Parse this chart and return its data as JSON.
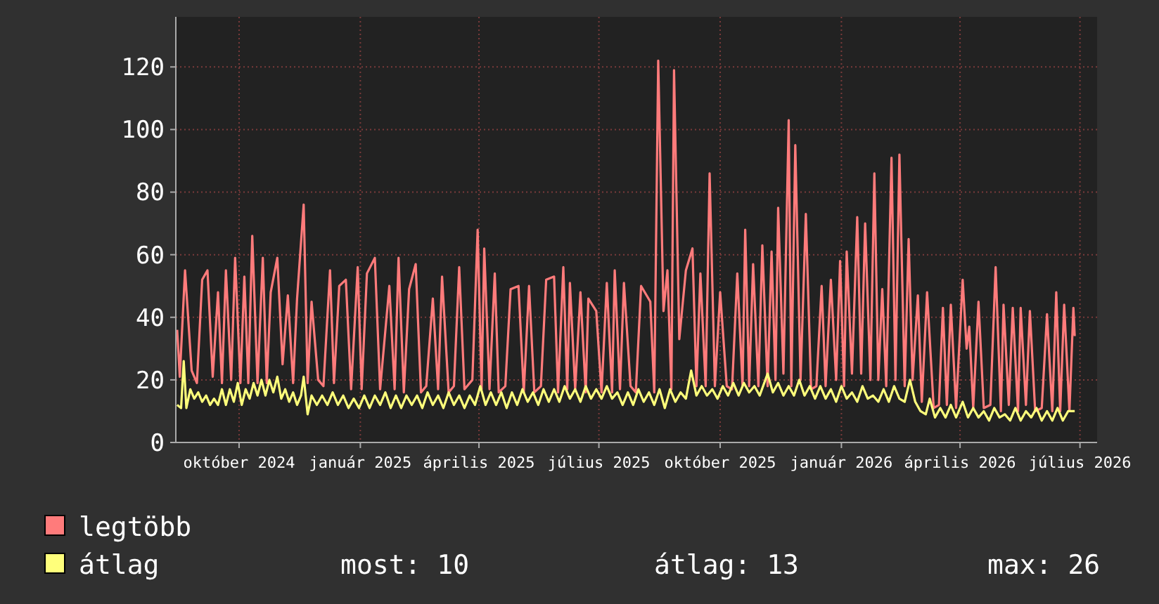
{
  "chart_data": {
    "type": "line",
    "xlim": [
      "2024-08-14",
      "2026-07-14"
    ],
    "xticks": [
      {
        "value": "2024-10-01",
        "label": "október 2024"
      },
      {
        "value": "2025-01-01",
        "label": "január 2025"
      },
      {
        "value": "2025-04-01",
        "label": "április 2025"
      },
      {
        "value": "2025-07-01",
        "label": "július 2025"
      },
      {
        "value": "2025-10-01",
        "label": "október 2025"
      },
      {
        "value": "2026-01-01",
        "label": "január 2026"
      },
      {
        "value": "2026-04-01",
        "label": "április 2026"
      },
      {
        "value": "2026-07-01",
        "label": "július 2026"
      }
    ],
    "ylim": [
      0,
      136
    ],
    "yticks": [
      0,
      20,
      40,
      60,
      80,
      100,
      120
    ],
    "grid": true,
    "legend": "bottom",
    "annotations": [
      "most: 10",
      "átlag: 13",
      "max: 26"
    ],
    "series": [
      {
        "name": "legtöbb",
        "color": "#ff7b7b",
        "x": [
          "2024-08-15",
          "2024-08-17",
          "2024-08-21",
          "2024-08-26",
          "2024-08-30",
          "2024-09-03",
          "2024-09-07",
          "2024-09-11",
          "2024-09-15",
          "2024-09-18",
          "2024-09-21",
          "2024-09-25",
          "2024-09-28",
          "2024-10-02",
          "2024-10-05",
          "2024-10-08",
          "2024-10-11",
          "2024-10-15",
          "2024-10-19",
          "2024-10-22",
          "2024-10-25",
          "2024-10-30",
          "2024-11-03",
          "2024-11-07",
          "2024-11-11",
          "2024-11-14",
          "2024-11-19",
          "2024-11-22",
          "2024-11-25",
          "2024-11-30",
          "2024-12-04",
          "2024-12-09",
          "2024-12-12",
          "2024-12-16",
          "2024-12-21",
          "2024-12-25",
          "2024-12-30",
          "2025-01-02",
          "2025-01-06",
          "2025-01-12",
          "2025-01-16",
          "2025-01-23",
          "2025-01-27",
          "2025-01-30",
          "2025-02-03",
          "2025-02-07",
          "2025-02-12",
          "2025-02-16",
          "2025-02-20",
          "2025-02-25",
          "2025-03-01",
          "2025-03-04",
          "2025-03-09",
          "2025-03-13",
          "2025-03-17",
          "2025-03-21",
          "2025-03-27",
          "2025-03-31",
          "2025-04-03",
          "2025-04-05",
          "2025-04-09",
          "2025-04-13",
          "2025-04-16",
          "2025-04-21",
          "2025-04-25",
          "2025-05-01",
          "2025-05-05",
          "2025-05-09",
          "2025-05-13",
          "2025-05-18",
          "2025-05-22",
          "2025-05-28",
          "2025-05-31",
          "2025-06-04",
          "2025-06-07",
          "2025-06-09",
          "2025-06-13",
          "2025-06-17",
          "2025-06-21",
          "2025-06-23",
          "2025-06-29",
          "2025-07-03",
          "2025-07-07",
          "2025-07-11",
          "2025-07-13",
          "2025-07-17",
          "2025-07-20",
          "2025-07-25",
          "2025-07-29",
          "2025-08-02",
          "2025-08-09",
          "2025-08-12",
          "2025-08-15",
          "2025-08-19",
          "2025-08-22",
          "2025-08-25",
          "2025-08-27",
          "2025-08-31",
          "2025-09-05",
          "2025-09-10",
          "2025-09-13",
          "2025-09-16",
          "2025-09-20",
          "2025-09-23",
          "2025-09-27",
          "2025-10-01",
          "2025-10-06",
          "2025-10-10",
          "2025-10-14",
          "2025-10-18",
          "2025-10-20",
          "2025-10-23",
          "2025-10-26",
          "2025-10-30",
          "2025-11-02",
          "2025-11-06",
          "2025-11-09",
          "2025-11-12",
          "2025-11-14",
          "2025-11-18",
          "2025-11-22",
          "2025-11-24",
          "2025-11-27",
          "2025-12-01",
          "2025-12-05",
          "2025-12-09",
          "2025-12-13",
          "2025-12-17",
          "2025-12-20",
          "2025-12-24",
          "2025-12-28",
          "2025-12-31",
          "2026-01-03",
          "2026-01-05",
          "2026-01-09",
          "2026-01-13",
          "2026-01-16",
          "2026-01-19",
          "2026-01-23",
          "2026-01-26",
          "2026-01-29",
          "2026-02-01",
          "2026-02-04",
          "2026-02-08",
          "2026-02-11",
          "2026-02-14",
          "2026-02-18",
          "2026-02-21",
          "2026-02-24",
          "2026-02-28",
          "2026-03-03",
          "2026-03-07",
          "2026-03-12",
          "2026-03-16",
          "2026-03-19",
          "2026-03-22",
          "2026-03-25",
          "2026-03-29",
          "2026-04-03",
          "2026-04-06",
          "2026-04-08",
          "2026-04-11",
          "2026-04-15",
          "2026-04-19",
          "2026-04-24",
          "2026-04-28",
          "2026-05-02",
          "2026-05-04",
          "2026-05-08",
          "2026-05-11",
          "2026-05-15",
          "2026-05-17",
          "2026-05-21",
          "2026-05-24",
          "2026-05-28",
          "2026-06-02",
          "2026-06-06",
          "2026-06-10",
          "2026-06-13",
          "2026-06-16",
          "2026-06-19",
          "2026-06-23",
          "2026-06-26",
          "2026-06-27"
        ],
        "values": [
          36,
          21,
          55,
          23,
          19,
          52,
          55,
          21,
          48,
          19,
          55,
          20,
          59,
          19,
          53,
          19,
          66,
          19,
          59,
          19,
          48,
          59,
          25,
          47,
          19,
          46,
          76,
          19,
          45,
          20,
          18,
          55,
          19,
          50,
          52,
          17,
          56,
          17,
          54,
          59,
          17,
          50,
          17,
          59,
          16,
          49,
          57,
          16,
          18,
          46,
          17,
          53,
          16,
          18,
          56,
          17,
          20,
          68,
          17,
          62,
          17,
          54,
          16,
          18,
          49,
          50,
          16,
          50,
          16,
          18,
          52,
          53,
          16,
          56,
          17,
          51,
          17,
          48,
          16,
          46,
          42,
          16,
          51,
          16,
          55,
          17,
          51,
          18,
          16,
          50,
          45,
          16,
          122,
          42,
          55,
          17,
          119,
          33,
          55,
          62,
          18,
          54,
          18,
          86,
          18,
          48,
          18,
          17,
          54,
          18,
          68,
          18,
          57,
          18,
          63,
          18,
          61,
          20,
          75,
          22,
          103,
          18,
          95,
          20,
          73,
          17,
          18,
          50,
          18,
          52,
          20,
          58,
          18,
          61,
          22,
          72,
          22,
          70,
          20,
          86,
          20,
          49,
          18,
          91,
          20,
          92,
          18,
          65,
          20,
          47,
          13,
          48,
          11,
          12,
          43,
          12,
          44,
          11,
          52,
          30,
          37,
          11,
          45,
          11,
          12,
          56,
          10,
          44,
          12,
          43,
          10,
          43,
          12,
          42,
          10,
          11,
          41,
          10,
          48,
          10,
          44,
          10,
          43,
          34
        ]
      },
      {
        "name": "átlag",
        "color": "#ffff7b",
        "x": [
          "2024-08-15",
          "2024-08-18",
          "2024-08-20",
          "2024-08-22",
          "2024-08-25",
          "2024-08-28",
          "2024-08-31",
          "2024-09-03",
          "2024-09-06",
          "2024-09-09",
          "2024-09-12",
          "2024-09-15",
          "2024-09-18",
          "2024-09-21",
          "2024-09-24",
          "2024-09-27",
          "2024-09-30",
          "2024-10-03",
          "2024-10-06",
          "2024-10-09",
          "2024-10-12",
          "2024-10-15",
          "2024-10-18",
          "2024-10-21",
          "2024-10-24",
          "2024-10-27",
          "2024-10-30",
          "2024-11-02",
          "2024-11-05",
          "2024-11-08",
          "2024-11-11",
          "2024-11-14",
          "2024-11-17",
          "2024-11-19",
          "2024-11-22",
          "2024-11-25",
          "2024-11-29",
          "2024-12-03",
          "2024-12-07",
          "2024-12-11",
          "2024-12-15",
          "2024-12-19",
          "2024-12-23",
          "2024-12-27",
          "2024-12-31",
          "2025-01-04",
          "2025-01-08",
          "2025-01-12",
          "2025-01-16",
          "2025-01-20",
          "2025-01-24",
          "2025-01-28",
          "2025-02-01",
          "2025-02-05",
          "2025-02-09",
          "2025-02-13",
          "2025-02-17",
          "2025-02-21",
          "2025-02-25",
          "2025-03-01",
          "2025-03-05",
          "2025-03-09",
          "2025-03-13",
          "2025-03-17",
          "2025-03-21",
          "2025-03-25",
          "2025-03-29",
          "2025-04-02",
          "2025-04-06",
          "2025-04-10",
          "2025-04-14",
          "2025-04-18",
          "2025-04-22",
          "2025-04-26",
          "2025-04-30",
          "2025-05-04",
          "2025-05-08",
          "2025-05-12",
          "2025-05-16",
          "2025-05-20",
          "2025-05-24",
          "2025-05-28",
          "2025-06-01",
          "2025-06-05",
          "2025-06-09",
          "2025-06-13",
          "2025-06-17",
          "2025-06-21",
          "2025-06-25",
          "2025-06-29",
          "2025-07-03",
          "2025-07-07",
          "2025-07-11",
          "2025-07-15",
          "2025-07-19",
          "2025-07-23",
          "2025-07-27",
          "2025-07-31",
          "2025-08-04",
          "2025-08-08",
          "2025-08-12",
          "2025-08-16",
          "2025-08-20",
          "2025-08-24",
          "2025-08-28",
          "2025-09-01",
          "2025-09-05",
          "2025-09-09",
          "2025-09-13",
          "2025-09-17",
          "2025-09-21",
          "2025-09-25",
          "2025-09-29",
          "2025-10-03",
          "2025-10-07",
          "2025-10-11",
          "2025-10-15",
          "2025-10-19",
          "2025-10-23",
          "2025-10-27",
          "2025-10-31",
          "2025-11-06",
          "2025-11-10",
          "2025-11-14",
          "2025-11-18",
          "2025-11-22",
          "2025-11-26",
          "2025-11-30",
          "2025-12-04",
          "2025-12-08",
          "2025-12-12",
          "2025-12-16",
          "2025-12-20",
          "2025-12-24",
          "2025-12-28",
          "2026-01-01",
          "2026-01-05",
          "2026-01-09",
          "2026-01-13",
          "2026-01-17",
          "2026-01-21",
          "2026-01-25",
          "2026-01-29",
          "2026-02-02",
          "2026-02-06",
          "2026-02-10",
          "2026-02-14",
          "2026-02-18",
          "2026-02-22",
          "2026-02-26",
          "2026-03-02",
          "2026-03-06",
          "2026-03-09",
          "2026-03-13",
          "2026-03-17",
          "2026-03-21",
          "2026-03-25",
          "2026-03-29",
          "2026-04-03",
          "2026-04-07",
          "2026-04-11",
          "2026-04-15",
          "2026-04-19",
          "2026-04-23",
          "2026-04-27",
          "2026-05-01",
          "2026-05-05",
          "2026-05-09",
          "2026-05-13",
          "2026-05-17",
          "2026-05-21",
          "2026-05-25",
          "2026-05-29",
          "2026-06-02",
          "2026-06-06",
          "2026-06-10",
          "2026-06-14",
          "2026-06-18",
          "2026-06-22",
          "2026-06-27"
        ],
        "values": [
          12,
          11,
          26,
          11,
          17,
          14,
          16,
          13,
          15,
          12,
          14,
          12,
          17,
          12,
          17,
          13,
          19,
          12,
          17,
          14,
          19,
          15,
          20,
          15,
          20,
          16,
          21,
          14,
          17,
          13,
          16,
          12,
          15,
          21,
          9,
          15,
          12,
          15,
          12,
          16,
          12,
          15,
          11,
          14,
          11,
          15,
          11,
          15,
          12,
          16,
          11,
          15,
          11,
          15,
          12,
          15,
          11,
          16,
          12,
          15,
          11,
          16,
          12,
          15,
          11,
          15,
          12,
          18,
          12,
          16,
          12,
          16,
          11,
          16,
          12,
          17,
          13,
          16,
          12,
          17,
          13,
          17,
          13,
          18,
          14,
          17,
          13,
          18,
          14,
          17,
          14,
          18,
          14,
          16,
          12,
          16,
          12,
          17,
          13,
          16,
          12,
          17,
          11,
          17,
          13,
          16,
          14,
          23,
          15,
          18,
          15,
          17,
          14,
          18,
          15,
          19,
          15,
          19,
          16,
          18,
          15,
          22,
          16,
          19,
          15,
          18,
          15,
          20,
          15,
          18,
          14,
          18,
          14,
          17,
          13,
          18,
          14,
          16,
          13,
          18,
          14,
          15,
          13,
          17,
          13,
          18,
          14,
          13,
          20,
          13,
          10,
          9,
          14,
          8,
          11,
          8,
          12,
          8,
          13,
          8,
          11,
          8,
          10,
          7,
          11,
          8,
          9,
          7,
          11,
          7,
          10,
          8,
          11,
          7,
          10,
          7,
          11,
          7,
          10,
          10
        ]
      }
    ]
  }
}
